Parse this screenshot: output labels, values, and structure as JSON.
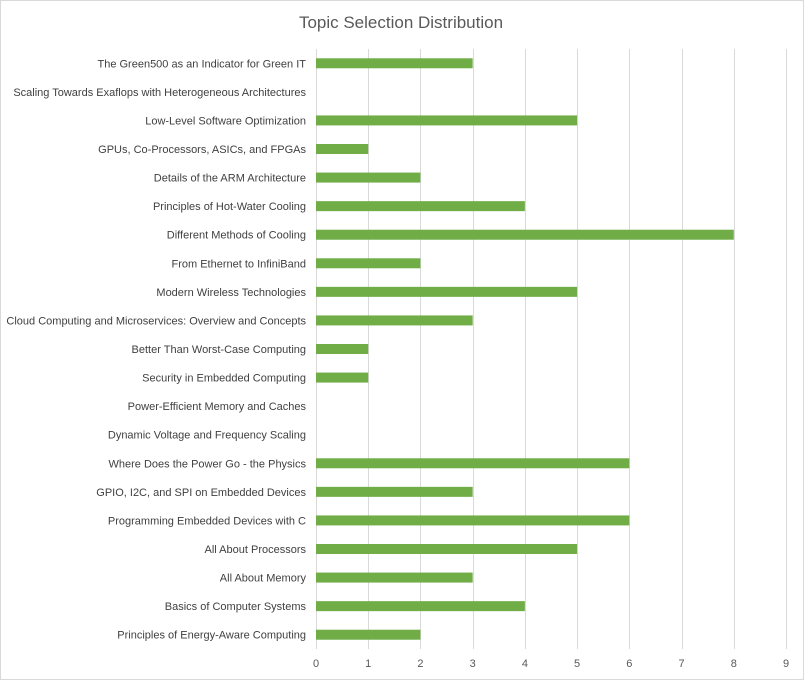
{
  "chart_data": {
    "type": "bar",
    "orientation": "horizontal",
    "title": "Topic Selection Distribution",
    "xlabel": "",
    "ylabel": "",
    "categories": [
      "The Green500 as an Indicator for Green IT",
      "Scaling Towards Exaflops with Heterogeneous Architectures",
      "Low-Level Software Optimization",
      "GPUs, Co-Processors, ASICs, and FPGAs",
      "Details of the ARM Architecture",
      "Principles of Hot-Water Cooling",
      "Different Methods of Cooling",
      "From Ethernet to InfiniBand",
      "Modern Wireless Technologies",
      "Cloud Computing and Microservices: Overview and Concepts",
      "Better Than Worst-Case Computing",
      "Security in Embedded Computing",
      "Power-Efficient Memory and Caches",
      "Dynamic Voltage and Frequency Scaling",
      "Where Does the Power Go - the Physics",
      "GPIO, I2C, and SPI on Embedded Devices",
      "Programming Embedded Devices with C",
      "All About Processors",
      "All About Memory",
      "Basics of Computer Systems",
      "Principles of Energy-Aware Computing"
    ],
    "values": [
      3,
      0,
      5,
      1,
      2,
      4,
      8,
      2,
      5,
      3,
      1,
      1,
      0,
      0,
      6,
      3,
      6,
      5,
      3,
      4,
      2
    ],
    "xlim": [
      0,
      9
    ],
    "xticks": [
      "0",
      "1",
      "2",
      "3",
      "4",
      "5",
      "6",
      "7",
      "8",
      "9"
    ],
    "grid": true,
    "legend": "none",
    "bar_color": "#70ad47"
  }
}
